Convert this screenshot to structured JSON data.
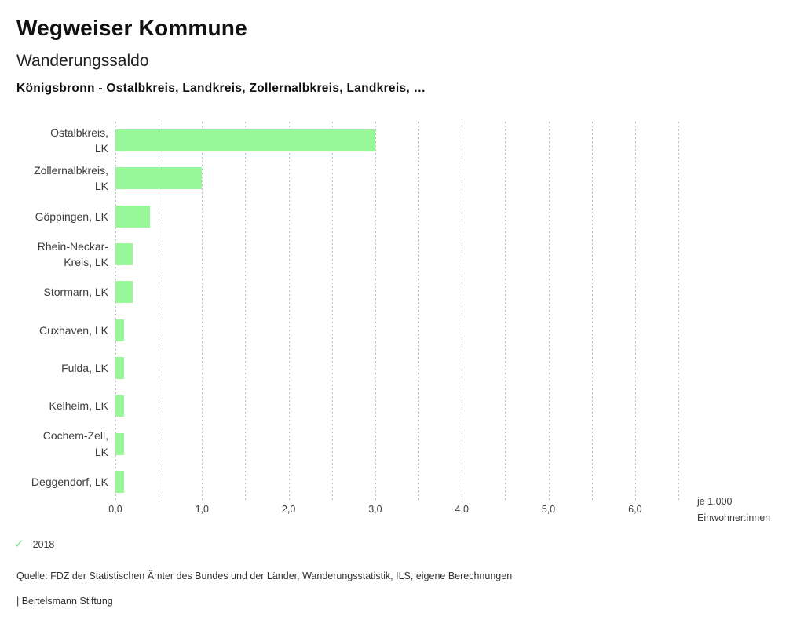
{
  "header": {
    "title": "Wegweiser Kommune",
    "subtitle": "Wanderungssaldo",
    "context": "Königsbronn - Ostalbkreis, Landkreis, Zollernalbkreis, Landkreis, …"
  },
  "chart_data": {
    "type": "bar",
    "orientation": "horizontal",
    "title": "Wanderungssaldo",
    "categories": [
      "Ostalbkreis,\nLK",
      "Zollernalbkreis,\nLK",
      "Göppingen, LK",
      "Rhein-Neckar-\nKreis, LK",
      "Stormarn, LK",
      "Cuxhaven, LK",
      "Fulda, LK",
      "Kelheim, LK",
      "Cochem-Zell,\nLK",
      "Deggendorf, LK"
    ],
    "values": [
      3.0,
      1.0,
      0.4,
      0.2,
      0.2,
      0.1,
      0.1,
      0.1,
      0.1,
      0.1
    ],
    "x_ticks": [
      "0,0",
      "1,0",
      "2,0",
      "3,0",
      "4,0",
      "5,0",
      "6,0"
    ],
    "xlim": [
      0,
      6.5
    ],
    "grid_step": 0.5,
    "grid_on": true,
    "unit_label": "je 1.000\nEinwohner:innen",
    "bar_color": "#98f798",
    "grid_color": "#bdbdbd",
    "legend_position": "bottom-left"
  },
  "legend": {
    "check_glyph": "✓",
    "check_color": "#8ce08c",
    "label": "2018"
  },
  "footer": {
    "source": "Quelle: FDZ der Statistischen Ämter des Bundes und der Länder, Wanderungsstatistik, ILS, eigene Berechnungen",
    "brand": "| Bertelsmann Stiftung"
  }
}
